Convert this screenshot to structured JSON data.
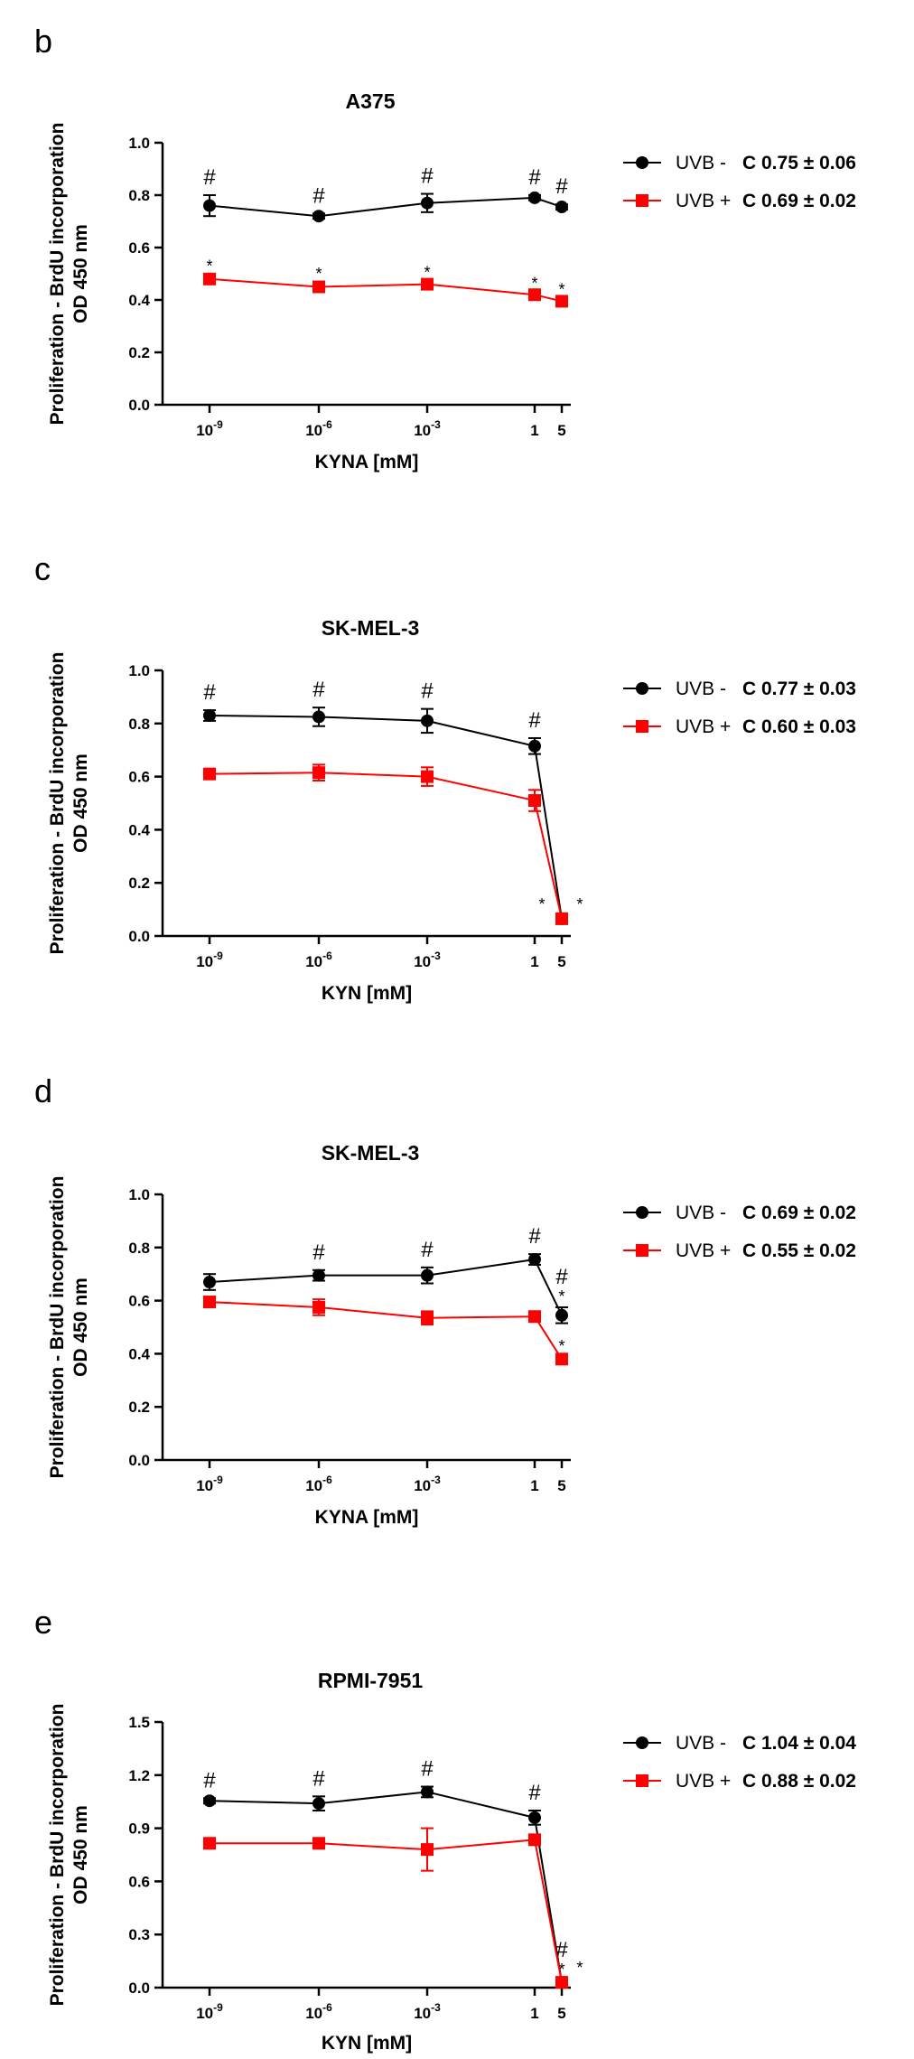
{
  "chart_data": [
    {
      "type": "line",
      "panel": "b",
      "title": "A375",
      "xlabel": "KYNA [mM]",
      "ylabel": [
        "Proliferation - BrdU incorporation",
        "OD 450 nm"
      ],
      "ylim": [
        0,
        1.0
      ],
      "yticks": [
        "0.0",
        "0.2",
        "0.4",
        "0.6",
        "0.8",
        "1.0"
      ],
      "categories": [
        {
          "base": "10",
          "exp": "-9"
        },
        {
          "base": "10",
          "exp": "-6"
        },
        {
          "base": "10",
          "exp": "-3"
        },
        {
          "base": "1",
          "exp": ""
        },
        {
          "base": "5",
          "exp": ""
        }
      ],
      "series": [
        {
          "name": "UVB -",
          "color": "#000000",
          "marker": "circle",
          "values": [
            0.76,
            0.72,
            0.77,
            0.79,
            0.755
          ],
          "errors": [
            0.04,
            0.01,
            0.035,
            0.01,
            0.01
          ],
          "annotations": [
            "#",
            "#",
            "#",
            "#",
            "#"
          ],
          "control": "C 0.75 ± 0.06"
        },
        {
          "name": "UVB +",
          "color": "#ff0000",
          "marker": "square",
          "values": [
            0.48,
            0.45,
            0.46,
            0.42,
            0.395
          ],
          "errors": [
            0.015,
            0.015,
            0.01,
            0.01,
            0.01
          ],
          "annotations": [
            "*",
            "*",
            "*",
            "*",
            "*"
          ],
          "control": "C 0.69 ± 0.02"
        }
      ]
    },
    {
      "type": "line",
      "panel": "c",
      "title": "SK-MEL-3",
      "xlabel": "KYN [mM]",
      "ylabel": [
        "Proliferation - BrdU incorporation",
        "OD 450 nm"
      ],
      "ylim": [
        0,
        1.0
      ],
      "yticks": [
        "0.0",
        "0.2",
        "0.4",
        "0.6",
        "0.8",
        "1.0"
      ],
      "categories": [
        {
          "base": "10",
          "exp": "-9"
        },
        {
          "base": "10",
          "exp": "-6"
        },
        {
          "base": "10",
          "exp": "-3"
        },
        {
          "base": "1",
          "exp": ""
        },
        {
          "base": "5",
          "exp": ""
        }
      ],
      "series": [
        {
          "name": "UVB -",
          "color": "#000000",
          "marker": "circle",
          "values": [
            0.83,
            0.825,
            0.81,
            0.715,
            0.065
          ],
          "errors": [
            0.02,
            0.035,
            0.045,
            0.03,
            0.01
          ],
          "annotations": [
            "#",
            "#",
            "#",
            "#",
            "*"
          ],
          "control": "C 0.77 ± 0.03"
        },
        {
          "name": "UVB +",
          "color": "#ff0000",
          "marker": "square",
          "values": [
            0.61,
            0.615,
            0.6,
            0.51,
            0.065
          ],
          "errors": [
            0.015,
            0.03,
            0.035,
            0.04,
            0.01
          ],
          "annotations": [
            "",
            "",
            "",
            "",
            "*"
          ],
          "control": "C 0.60 ± 0.03"
        }
      ]
    },
    {
      "type": "line",
      "panel": "d",
      "title": "SK-MEL-3",
      "xlabel": "KYNA [mM]",
      "ylabel": [
        "Proliferation - BrdU incorporation",
        "OD 450 nm"
      ],
      "ylim": [
        0,
        1.0
      ],
      "yticks": [
        "0.0",
        "0.2",
        "0.4",
        "0.6",
        "0.8",
        "1.0"
      ],
      "categories": [
        {
          "base": "10",
          "exp": "-9"
        },
        {
          "base": "10",
          "exp": "-6"
        },
        {
          "base": "10",
          "exp": "-3"
        },
        {
          "base": "1",
          "exp": ""
        },
        {
          "base": "5",
          "exp": ""
        }
      ],
      "series": [
        {
          "name": "UVB -",
          "color": "#000000",
          "marker": "circle",
          "values": [
            0.67,
            0.695,
            0.695,
            0.755,
            0.545
          ],
          "errors": [
            0.03,
            0.02,
            0.03,
            0.02,
            0.03
          ],
          "annotations": [
            "",
            "#",
            "#",
            "#",
            "#*"
          ],
          "control": "C 0.69 ± 0.02"
        },
        {
          "name": "UVB +",
          "color": "#ff0000",
          "marker": "square",
          "values": [
            0.595,
            0.575,
            0.535,
            0.54,
            0.38
          ],
          "errors": [
            0.02,
            0.03,
            0.025,
            0.01,
            0.015
          ],
          "annotations": [
            "",
            "",
            "",
            "",
            "*"
          ],
          "control": "C 0.55 ± 0.02"
        }
      ]
    },
    {
      "type": "line",
      "panel": "e",
      "title": "RPMI-7951",
      "xlabel": "KYN [mM]",
      "ylabel": [
        "Proliferation - BrdU incorporation",
        "OD 450 nm"
      ],
      "ylim": [
        0,
        1.5
      ],
      "yticks": [
        "0.0",
        "0.3",
        "0.6",
        "0.9",
        "1.2",
        "1.5"
      ],
      "categories": [
        {
          "base": "10",
          "exp": "-9"
        },
        {
          "base": "10",
          "exp": "-6"
        },
        {
          "base": "10",
          "exp": "-3"
        },
        {
          "base": "1",
          "exp": ""
        },
        {
          "base": "5",
          "exp": ""
        }
      ],
      "series": [
        {
          "name": "UVB -",
          "color": "#000000",
          "marker": "circle",
          "values": [
            1.055,
            1.04,
            1.105,
            0.96,
            0.03
          ],
          "errors": [
            0.015,
            0.04,
            0.03,
            0.04,
            0.01
          ],
          "annotations": [
            "#",
            "#",
            "#",
            "#",
            "#*"
          ],
          "control": "C 1.04 ± 0.04"
        },
        {
          "name": "UVB +",
          "color": "#ff0000",
          "marker": "square",
          "values": [
            0.815,
            0.815,
            0.78,
            0.835,
            0.03
          ],
          "errors": [
            0.015,
            0.015,
            0.12,
            0.015,
            0.01
          ],
          "annotations": [
            "",
            "",
            "",
            "",
            "*"
          ],
          "control": "C 0.88 ± 0.02"
        }
      ]
    }
  ]
}
